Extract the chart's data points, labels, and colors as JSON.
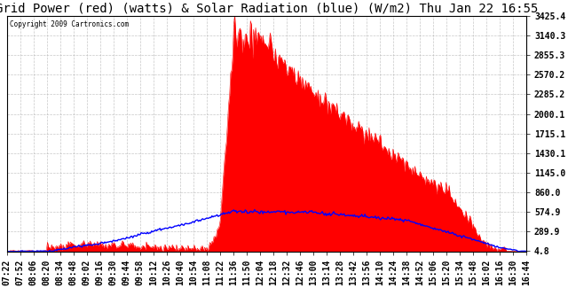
{
  "title": "Grid Power (red) (watts) & Solar Radiation (blue) (W/m2) Thu Jan 22 16:55",
  "copyright": "Copyright 2009 Cartronics.com",
  "yticks": [
    4.8,
    289.9,
    574.9,
    860.0,
    1145.0,
    1430.1,
    1715.1,
    2000.1,
    2285.2,
    2570.2,
    2855.3,
    3140.3,
    3425.4
  ],
  "ymin": 0,
  "ymax": 3425.4,
  "xtick_labels": [
    "07:22",
    "07:52",
    "08:06",
    "08:20",
    "08:34",
    "08:48",
    "09:02",
    "09:16",
    "09:30",
    "09:44",
    "09:58",
    "10:12",
    "10:26",
    "10:40",
    "10:54",
    "11:08",
    "11:22",
    "11:36",
    "11:50",
    "12:04",
    "12:18",
    "12:32",
    "12:46",
    "13:00",
    "13:14",
    "13:28",
    "13:42",
    "13:56",
    "14:10",
    "14:24",
    "14:38",
    "14:52",
    "15:06",
    "15:20",
    "15:34",
    "15:48",
    "16:02",
    "16:16",
    "16:30",
    "16:44"
  ],
  "background_color": "#ffffff",
  "red_color": "#ff0000",
  "blue_color": "#0000ff",
  "grid_color": "#b0b0b0",
  "title_fontsize": 10,
  "tick_fontsize": 7,
  "n_xticks": 40
}
